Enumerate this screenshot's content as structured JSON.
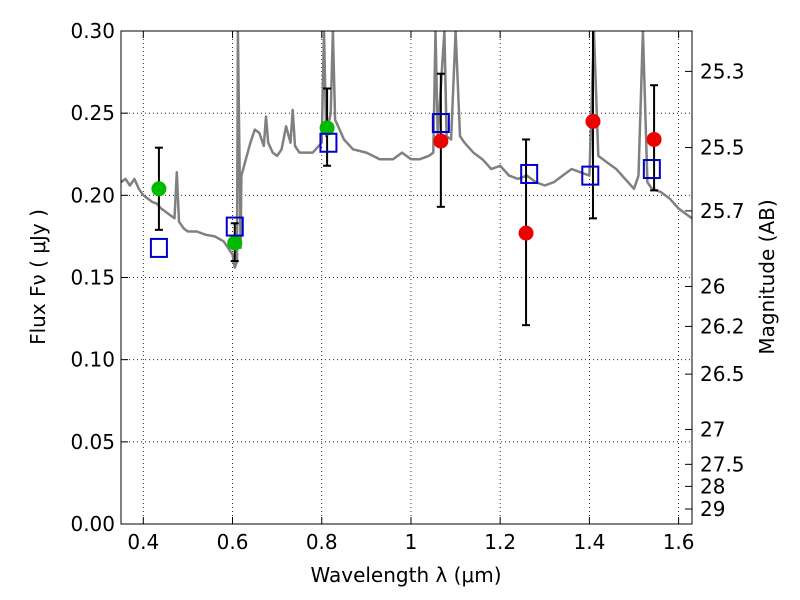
{
  "chart_data": {
    "type": "scatter",
    "xlabel": "Wavelength  λ (μm)",
    "ylabel": "Flux  Fν  ( μJy )",
    "ylabel_right": "Magnitude (AB)",
    "xlim": [
      0.35,
      1.63
    ],
    "ylim": [
      0.0,
      0.3
    ],
    "grid": true,
    "x_ticks": [
      {
        "value": 0.4,
        "label": "0.4"
      },
      {
        "value": 0.6,
        "label": "0.6"
      },
      {
        "value": 0.8,
        "label": "0.8"
      },
      {
        "value": 1.0,
        "label": "1"
      },
      {
        "value": 1.2,
        "label": "1.2"
      },
      {
        "value": 1.4,
        "label": "1.4"
      },
      {
        "value": 1.6,
        "label": "1.6"
      }
    ],
    "y_ticks": [
      {
        "value": 0.0,
        "label": "0.00"
      },
      {
        "value": 0.05,
        "label": "0.05"
      },
      {
        "value": 0.1,
        "label": "0.10"
      },
      {
        "value": 0.15,
        "label": "0.15"
      },
      {
        "value": 0.2,
        "label": "0.20"
      },
      {
        "value": 0.25,
        "label": "0.25"
      },
      {
        "value": 0.3,
        "label": "0.30"
      }
    ],
    "mag_ticks": [
      {
        "value": 25.3,
        "label": "25.3"
      },
      {
        "value": 25.5,
        "label": "25.5"
      },
      {
        "value": 25.7,
        "label": "25.7"
      },
      {
        "value": 26.0,
        "label": "26"
      },
      {
        "value": 26.2,
        "label": "26.2"
      },
      {
        "value": 26.5,
        "label": "26.5"
      },
      {
        "value": 27.0,
        "label": "27"
      },
      {
        "value": 27.5,
        "label": "27.5"
      },
      {
        "value": 28.0,
        "label": "28"
      },
      {
        "value": 29.0,
        "label": "29"
      }
    ],
    "model_spectrum": {
      "color": "#808080",
      "points": [
        [
          0.35,
          0.208
        ],
        [
          0.36,
          0.21
        ],
        [
          0.37,
          0.206
        ],
        [
          0.38,
          0.21
        ],
        [
          0.39,
          0.204
        ],
        [
          0.4,
          0.2
        ],
        [
          0.41,
          0.198
        ],
        [
          0.42,
          0.196
        ],
        [
          0.43,
          0.195
        ],
        [
          0.44,
          0.192
        ],
        [
          0.45,
          0.19
        ],
        [
          0.46,
          0.188
        ],
        [
          0.47,
          0.186
        ],
        [
          0.475,
          0.214
        ],
        [
          0.48,
          0.184
        ],
        [
          0.49,
          0.18
        ],
        [
          0.5,
          0.178
        ],
        [
          0.52,
          0.178
        ],
        [
          0.54,
          0.176
        ],
        [
          0.56,
          0.175
        ],
        [
          0.58,
          0.172
        ],
        [
          0.59,
          0.168
        ],
        [
          0.6,
          0.164
        ],
        [
          0.605,
          0.156
        ],
        [
          0.61,
          0.16
        ],
        [
          0.612,
          0.3
        ],
        [
          0.618,
          0.168
        ],
        [
          0.62,
          0.212
        ],
        [
          0.63,
          0.222
        ],
        [
          0.64,
          0.232
        ],
        [
          0.65,
          0.24
        ],
        [
          0.66,
          0.238
        ],
        [
          0.67,
          0.23
        ],
        [
          0.675,
          0.248
        ],
        [
          0.68,
          0.232
        ],
        [
          0.69,
          0.226
        ],
        [
          0.7,
          0.224
        ],
        [
          0.71,
          0.228
        ],
        [
          0.72,
          0.242
        ],
        [
          0.73,
          0.232
        ],
        [
          0.735,
          0.252
        ],
        [
          0.74,
          0.23
        ],
        [
          0.75,
          0.226
        ],
        [
          0.76,
          0.226
        ],
        [
          0.78,
          0.226
        ],
        [
          0.8,
          0.232
        ],
        [
          0.805,
          0.3
        ],
        [
          0.81,
          0.236
        ],
        [
          0.82,
          0.25
        ],
        [
          0.825,
          0.3
        ],
        [
          0.83,
          0.246
        ],
        [
          0.84,
          0.24
        ],
        [
          0.85,
          0.234
        ],
        [
          0.87,
          0.228
        ],
        [
          0.9,
          0.226
        ],
        [
          0.93,
          0.222
        ],
        [
          0.96,
          0.222
        ],
        [
          0.98,
          0.226
        ],
        [
          1.0,
          0.222
        ],
        [
          1.02,
          0.222
        ],
        [
          1.04,
          0.224
        ],
        [
          1.05,
          0.226
        ],
        [
          1.055,
          0.3
        ],
        [
          1.06,
          0.236
        ],
        [
          1.075,
          0.3
        ],
        [
          1.08,
          0.236
        ],
        [
          1.09,
          0.234
        ],
        [
          1.1,
          0.3
        ],
        [
          1.11,
          0.236
        ],
        [
          1.12,
          0.232
        ],
        [
          1.14,
          0.226
        ],
        [
          1.16,
          0.222
        ],
        [
          1.18,
          0.216
        ],
        [
          1.2,
          0.218
        ],
        [
          1.22,
          0.212
        ],
        [
          1.24,
          0.21
        ],
        [
          1.26,
          0.212
        ],
        [
          1.28,
          0.208
        ],
        [
          1.3,
          0.206
        ],
        [
          1.32,
          0.208
        ],
        [
          1.34,
          0.212
        ],
        [
          1.36,
          0.216
        ],
        [
          1.38,
          0.214
        ],
        [
          1.4,
          0.212
        ],
        [
          1.41,
          0.3
        ],
        [
          1.42,
          0.224
        ],
        [
          1.44,
          0.22
        ],
        [
          1.46,
          0.216
        ],
        [
          1.48,
          0.21
        ],
        [
          1.5,
          0.204
        ],
        [
          1.51,
          0.212
        ],
        [
          1.52,
          0.3
        ],
        [
          1.53,
          0.208
        ],
        [
          1.54,
          0.204
        ],
        [
          1.56,
          0.202
        ],
        [
          1.58,
          0.198
        ],
        [
          1.6,
          0.192
        ],
        [
          1.62,
          0.188
        ],
        [
          1.63,
          0.186
        ]
      ]
    },
    "series": [
      {
        "marker": "circle",
        "color": "#00bb00",
        "points": [
          {
            "x": 0.435,
            "y": 0.204
          },
          {
            "x": 0.605,
            "y": 0.171
          },
          {
            "x": 0.812,
            "y": 0.241
          }
        ]
      },
      {
        "marker": "circle",
        "color": "#ee0000",
        "points": [
          {
            "x": 1.067,
            "y": 0.233
          },
          {
            "x": 1.258,
            "y": 0.177
          },
          {
            "x": 1.408,
            "y": 0.245
          },
          {
            "x": 1.545,
            "y": 0.234
          }
        ]
      },
      {
        "marker": "open-square",
        "color": "#0000cc",
        "points": [
          {
            "x": 0.435,
            "y": 0.168
          },
          {
            "x": 0.605,
            "y": 0.181
          },
          {
            "x": 0.815,
            "y": 0.232
          },
          {
            "x": 1.067,
            "y": 0.244
          },
          {
            "x": 1.265,
            "y": 0.213
          },
          {
            "x": 1.402,
            "y": 0.212
          },
          {
            "x": 1.54,
            "y": 0.216
          }
        ]
      }
    ],
    "errorbars": [
      {
        "x": 0.435,
        "y_low": 0.179,
        "y_high": 0.229
      },
      {
        "x": 0.605,
        "y_low": 0.16,
        "y_high": 0.183
      },
      {
        "x": 0.812,
        "y_low": 0.218,
        "y_high": 0.265
      },
      {
        "x": 1.067,
        "y_low": 0.193,
        "y_high": 0.274
      },
      {
        "x": 1.258,
        "y_low": 0.121,
        "y_high": 0.234
      },
      {
        "x": 1.408,
        "y_low": 0.186,
        "y_high": 0.3
      },
      {
        "x": 1.545,
        "y_low": 0.203,
        "y_high": 0.267
      }
    ]
  }
}
